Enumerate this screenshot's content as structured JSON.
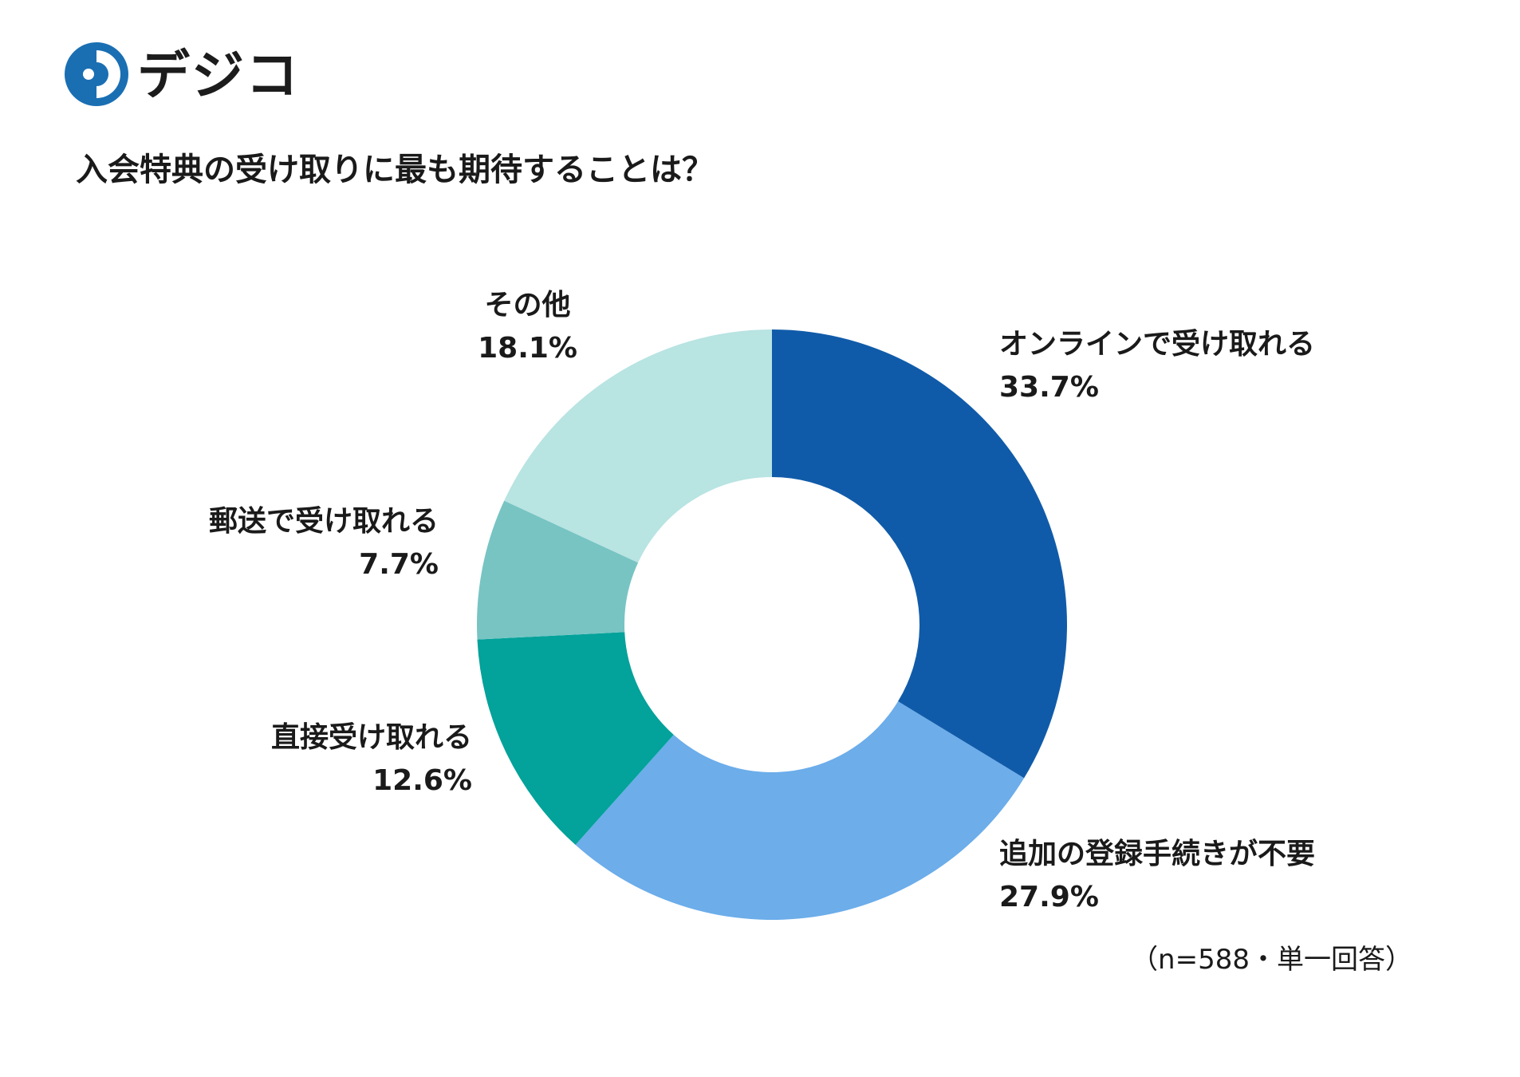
{
  "brand": {
    "name": "デジコ",
    "colors": {
      "circle_outer": "#1a6fb3",
      "circle_inner": "#2a9fc2",
      "dots": [
        "#1a6fb3",
        "#2a9fc2",
        "#3db6cf"
      ]
    }
  },
  "title": "入会特典の受け取りに最も期待することは？",
  "note": "（n=588・単一回答）",
  "chart_data": {
    "type": "pie",
    "donut": true,
    "start_angle_deg": 0,
    "direction": "clockwise",
    "slices": [
      {
        "label": "オンラインで受け取れる",
        "value": 33.7,
        "display": "33.7%",
        "color": "#105ba9"
      },
      {
        "label": "追加の登録手続きが不要",
        "value": 27.9,
        "display": "27.9%",
        "color": "#6cadea"
      },
      {
        "label": "直接受け取れる",
        "value": 12.6,
        "display": "12.6%",
        "color": "#03a29a"
      },
      {
        "label": "郵送で受け取れる",
        "value": 7.7,
        "display": "7.7%",
        "color": "#77c4c3"
      },
      {
        "label": "その他",
        "value": 18.1,
        "display": "18.1%",
        "color": "#b8e4e2"
      }
    ]
  }
}
